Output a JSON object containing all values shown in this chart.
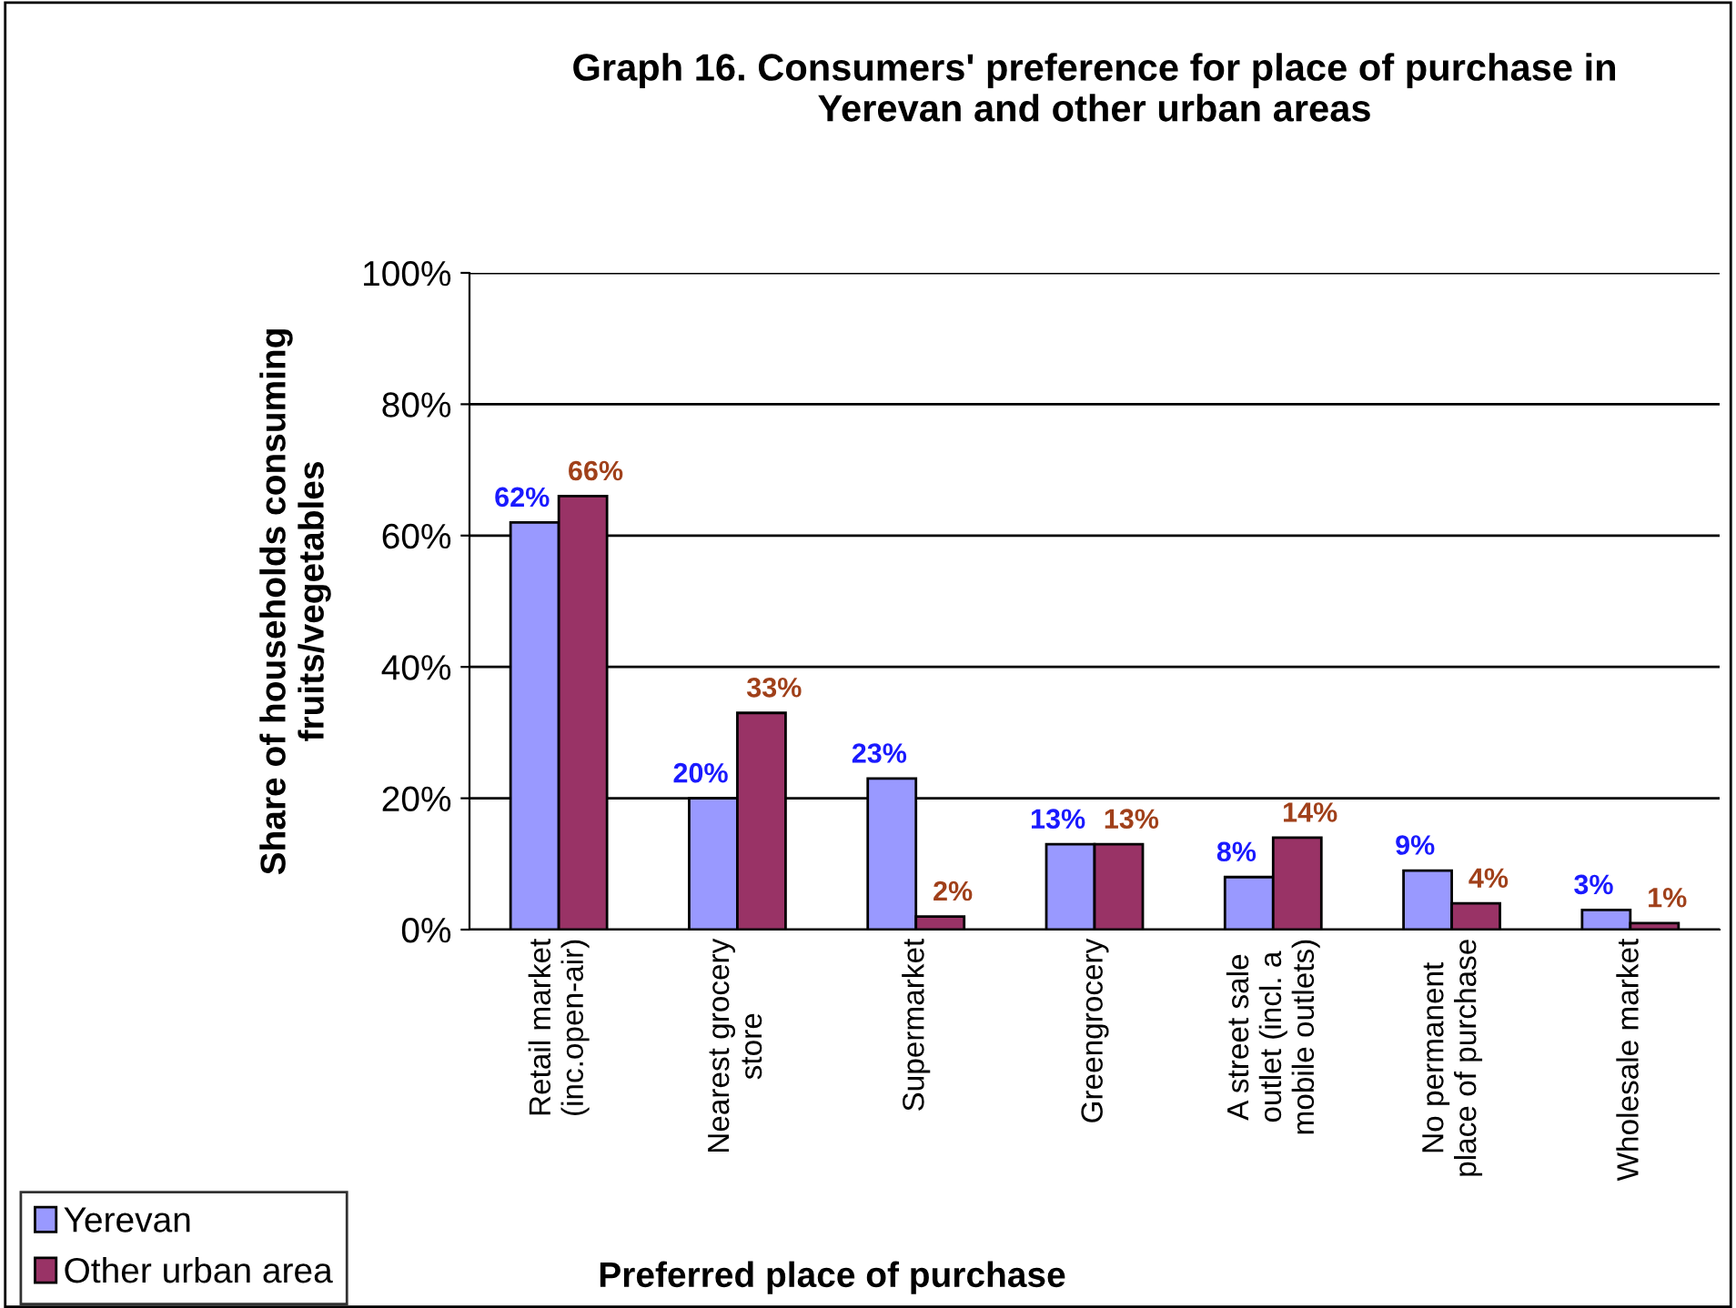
{
  "chart_data": {
    "type": "bar",
    "title": "Graph 16. Consumers' preference for place of purchase in\nYerevan and other urban areas",
    "xlabel": "Preferred place of purchase",
    "ylabel": "Share of households consuming\nfruits/vegetables",
    "categories": [
      "Retail market\n(inc.open-air)",
      "Nearest grocery\nstore",
      "Supermarket",
      "Greengrocery",
      "A street sale\noutlet (incl. a\nmobile outlets)",
      "No permanent\nplace of purchase",
      "Wholesale market"
    ],
    "series": [
      {
        "name": "Yerevan",
        "color": "#9999ff",
        "values": [
          62,
          20,
          23,
          13,
          8,
          9,
          3
        ],
        "value_labels": [
          "62%",
          "20%",
          "23%",
          "13%",
          "8%",
          "9%",
          "3%"
        ]
      },
      {
        "name": "Other urban area",
        "color": "#993366",
        "values": [
          66,
          33,
          2,
          13,
          14,
          4,
          1
        ],
        "value_labels": [
          "66%",
          "33%",
          "2%",
          "13%",
          "14%",
          "4%",
          "1%"
        ]
      }
    ],
    "ylim": [
      0,
      100
    ],
    "yticks": [
      {
        "value": 0,
        "label": "0%"
      },
      {
        "value": 20,
        "label": "20%"
      },
      {
        "value": 40,
        "label": "40%"
      },
      {
        "value": 60,
        "label": "60%"
      },
      {
        "value": 80,
        "label": "80%"
      },
      {
        "value": 100,
        "label": "100%"
      }
    ],
    "grid": "y",
    "legend": "bottom left"
  }
}
